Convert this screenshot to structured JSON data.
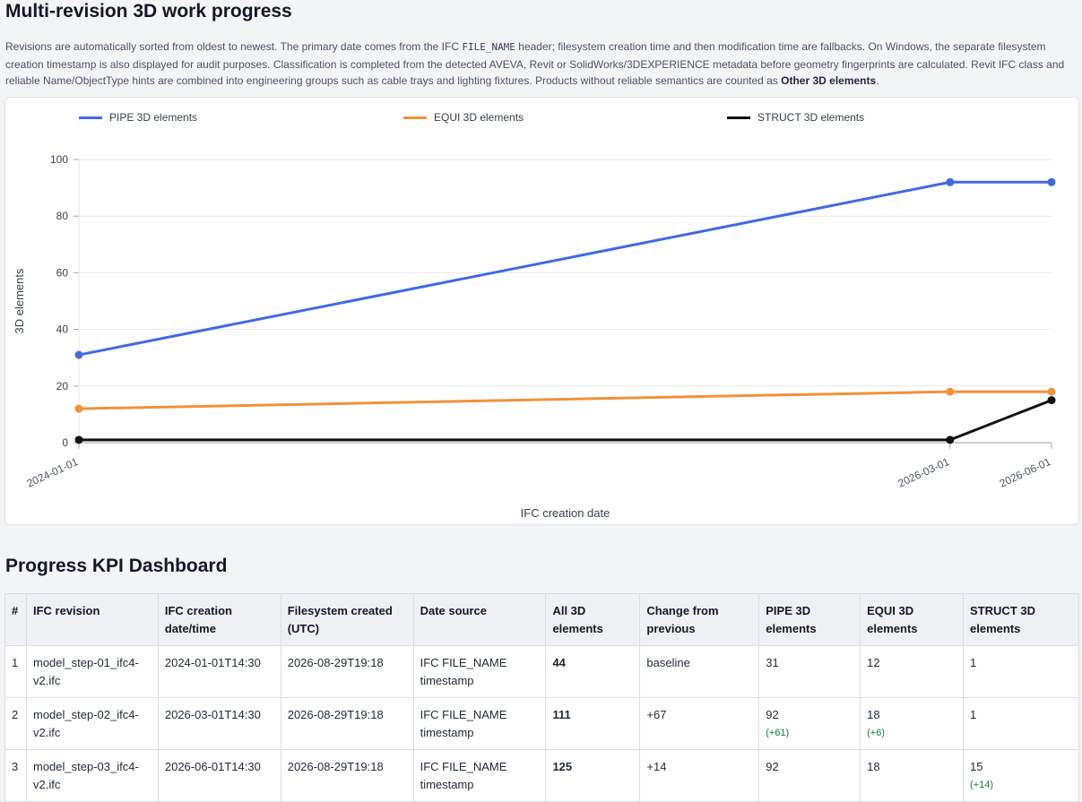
{
  "header": {
    "title": "Multi-revision 3D work progress",
    "description": {
      "p1": "Revisions are automatically sorted from oldest to newest. The primary date comes from the IFC ",
      "code": "FILE_NAME",
      "p2": " header; filesystem creation time and then modification time are fallbacks. On Windows, the separate filesystem creation timestamp is also displayed for audit purposes. Classification is completed from the detected AVEVA, Revit or SolidWorks/3DEXPERIENCE metadata before geometry fingerprints are calculated. Revit IFC class and reliable Name/ObjectType hints are combined into engineering groups such as cable trays and lighting fixtures. Products without reliable semantics are counted as ",
      "bold": "Other 3D elements",
      "p3": "."
    }
  },
  "chart_data": {
    "type": "line",
    "x": [
      "2024-01-01",
      "2026-03-01",
      "2026-06-01"
    ],
    "series": [
      {
        "name": "PIPE 3D elements",
        "values": [
          31,
          92,
          92
        ],
        "color": "#4169e1"
      },
      {
        "name": "EQUI 3D elements",
        "values": [
          12,
          18,
          18
        ],
        "color": "#f0913a"
      },
      {
        "name": "STRUCT 3D elements",
        "values": [
          1,
          1,
          15
        ],
        "color": "#111111"
      }
    ],
    "xlabel": "IFC creation date",
    "ylabel": "3D elements",
    "ylim": [
      0,
      100
    ],
    "yticks": [
      0,
      20,
      40,
      60,
      80,
      100
    ],
    "grid": true,
    "legend": "top"
  },
  "kpi": {
    "title": "Progress KPI Dashboard",
    "columns": [
      "#",
      "IFC revision",
      "IFC creation date/time",
      "Filesystem created (UTC)",
      "Date source",
      "All 3D elements",
      "Change from previous",
      "PIPE 3D elements",
      "EQUI 3D elements",
      "STRUCT 3D elements"
    ],
    "rows": [
      {
        "idx": "1",
        "revision": "model_step-01_ifc4-v2.ifc",
        "ifc_date": "2024-01-01T14:30",
        "fs_created": "2026-08-29T19:18",
        "source": "IFC FILE_NAME timestamp",
        "all": "44",
        "change": "baseline",
        "pipe": "31",
        "pipe_delta": "",
        "equi": "12",
        "equi_delta": "",
        "struct": "1",
        "struct_delta": ""
      },
      {
        "idx": "2",
        "revision": "model_step-02_ifc4-v2.ifc",
        "ifc_date": "2026-03-01T14:30",
        "fs_created": "2026-08-29T19:18",
        "source": "IFC FILE_NAME timestamp",
        "all": "111",
        "change": "+67",
        "pipe": "92",
        "pipe_delta": "(+61)",
        "equi": "18",
        "equi_delta": "(+6)",
        "struct": "1",
        "struct_delta": ""
      },
      {
        "idx": "3",
        "revision": "model_step-03_ifc4-v2.ifc",
        "ifc_date": "2026-06-01T14:30",
        "fs_created": "2026-08-29T19:18",
        "source": "IFC FILE_NAME timestamp",
        "all": "125",
        "change": "+14",
        "pipe": "92",
        "pipe_delta": "",
        "equi": "18",
        "equi_delta": "",
        "struct": "15",
        "struct_delta": "(+14)"
      }
    ]
  }
}
